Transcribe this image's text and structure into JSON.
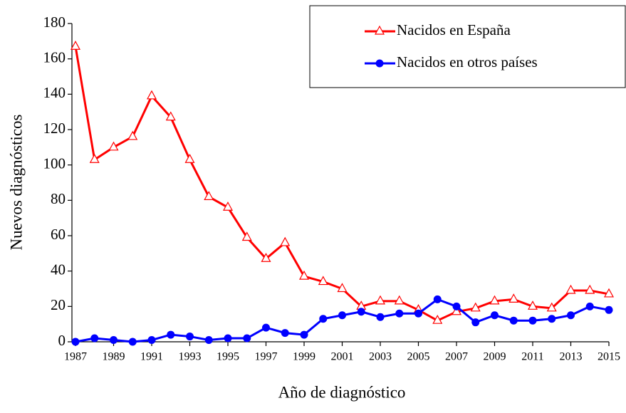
{
  "chart_data": {
    "type": "line",
    "x_label": "Año de diagnóstico",
    "y_label": "Nuevos diagnósticos",
    "x": [
      1987,
      1988,
      1989,
      1990,
      1991,
      1992,
      1993,
      1994,
      1995,
      1996,
      1997,
      1998,
      1999,
      2000,
      2001,
      2002,
      2003,
      2004,
      2005,
      2006,
      2007,
      2008,
      2009,
      2010,
      2011,
      2012,
      2013,
      2014,
      2015
    ],
    "series": [
      {
        "name": "Nacidos en España",
        "color": "#ff0000",
        "marker": "triangle",
        "values": [
          167,
          103,
          110,
          116,
          139,
          127,
          103,
          82,
          76,
          59,
          47,
          56,
          37,
          34,
          30,
          20,
          23,
          23,
          18,
          12,
          17,
          19,
          23,
          24,
          20,
          19,
          29,
          29,
          27
        ]
      },
      {
        "name": "Nacidos en otros países",
        "color": "#0000ff",
        "marker": "circle",
        "values": [
          0,
          2,
          1,
          0,
          1,
          4,
          3,
          1,
          2,
          2,
          8,
          5,
          4,
          13,
          15,
          17,
          14,
          16,
          16,
          24,
          20,
          11,
          15,
          12,
          12,
          13,
          15,
          20,
          18
        ]
      }
    ],
    "xlim": [
      1987,
      2015
    ],
    "xticks": [
      1987,
      1989,
      1991,
      1993,
      1995,
      1997,
      1999,
      2001,
      2003,
      2005,
      2007,
      2009,
      2011,
      2013,
      2015
    ],
    "ylim": [
      0,
      180
    ],
    "yticks": [
      0,
      20,
      40,
      60,
      80,
      100,
      120,
      140,
      160,
      180
    ],
    "legend": "upper right"
  }
}
